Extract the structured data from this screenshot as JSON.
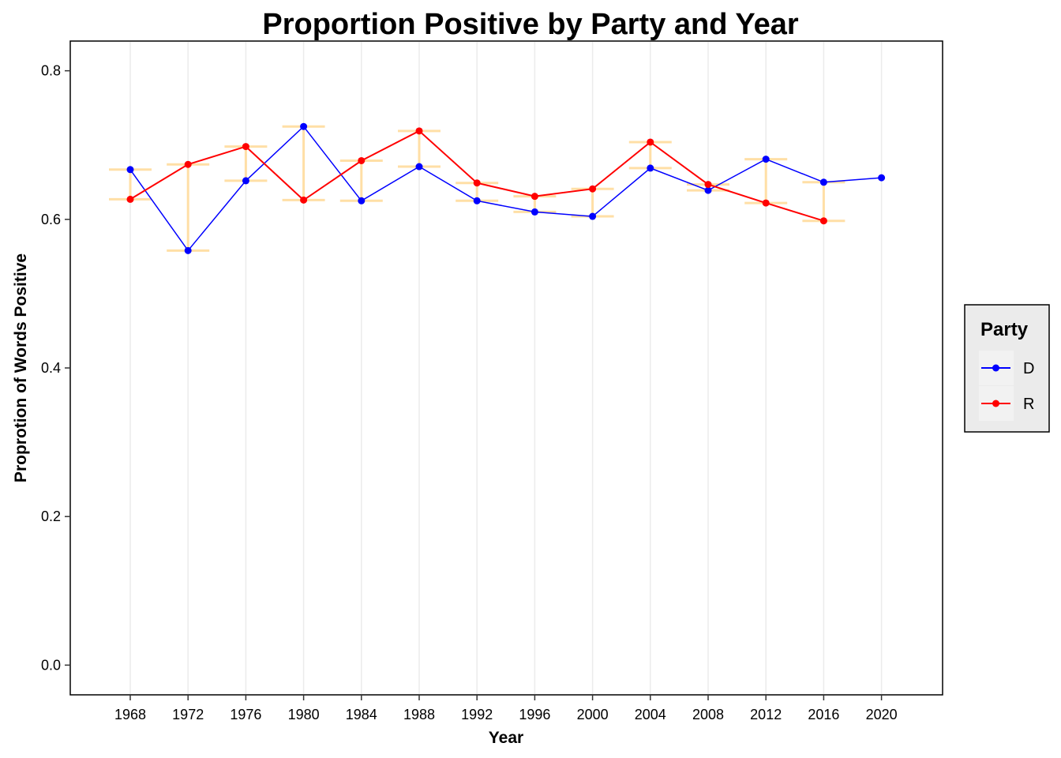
{
  "chart_data": {
    "type": "line",
    "title": "Proportion Positive by Party and Year",
    "xlabel": "Year",
    "ylabel": "Proprotion of Words Positive",
    "x": [
      1968,
      1972,
      1976,
      1980,
      1984,
      1988,
      1992,
      1996,
      2000,
      2004,
      2008,
      2012,
      2016,
      2020
    ],
    "ylim": [
      -0.04,
      0.84
    ],
    "yticks": [
      0.0,
      0.2,
      0.4,
      0.6,
      0.8
    ],
    "ytick_labels": [
      "0.0",
      "0.2",
      "0.4",
      "0.6",
      "0.8"
    ],
    "xtick_labels": [
      "1968",
      "1972",
      "1976",
      "1980",
      "1984",
      "1988",
      "1992",
      "1996",
      "2000",
      "2004",
      "2008",
      "2012",
      "2016",
      "2020"
    ],
    "grid": {
      "major_x": true,
      "major_y": false
    },
    "legend": {
      "title": "Party",
      "placement": "right"
    },
    "series": [
      {
        "name": "D",
        "color": "#0000ff",
        "values": [
          0.667,
          0.558,
          0.652,
          0.725,
          0.625,
          0.671,
          0.625,
          0.61,
          0.604,
          0.669,
          0.639,
          0.681,
          0.65,
          0.656
        ]
      },
      {
        "name": "R",
        "color": "#ff0000",
        "values": [
          0.627,
          0.674,
          0.698,
          0.626,
          0.679,
          0.719,
          0.649,
          0.631,
          0.641,
          0.704,
          0.647,
          0.622,
          0.598,
          null
        ]
      }
    ],
    "range_bars": {
      "color": "#ffdfa6"
    },
    "colors": {
      "d": "#0000ff",
      "r": "#ff0000",
      "range": "#ffdfa6",
      "grid": "#ebebeb",
      "legend_bg": "#ebebeb"
    }
  }
}
